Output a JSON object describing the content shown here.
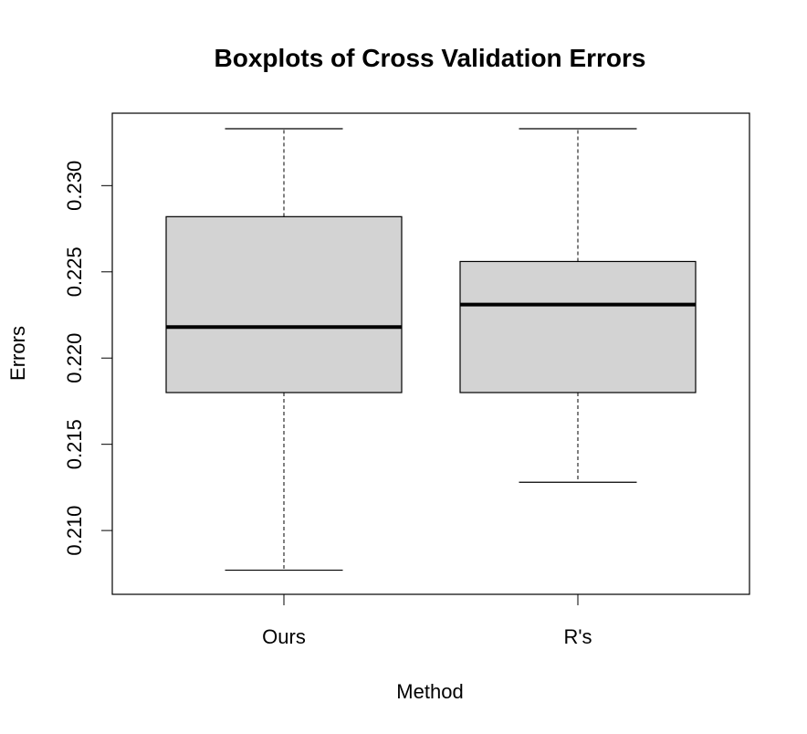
{
  "chart_data": {
    "type": "boxplot",
    "title": "Boxplots of Cross Validation Errors",
    "xlabel": "Method",
    "ylabel": "Errors",
    "ylim": [
      0.2063,
      0.2342
    ],
    "y_ticks": [
      0.21,
      0.215,
      0.22,
      0.225,
      0.23
    ],
    "y_tick_labels": [
      "0.210",
      "0.215",
      "0.220",
      "0.225",
      "0.230"
    ],
    "categories": [
      "Ours",
      "R's"
    ],
    "boxes": [
      {
        "label": "Ours",
        "whisker_low": 0.2077,
        "q1": 0.218,
        "median": 0.2218,
        "q3": 0.2282,
        "whisker_high": 0.2333
      },
      {
        "label": "R's",
        "whisker_low": 0.2128,
        "q1": 0.218,
        "median": 0.2231,
        "q3": 0.2256,
        "whisker_high": 0.2333
      }
    ],
    "box_fill": "#d3d3d3",
    "line_color": "#000000",
    "grid": false,
    "legend": false
  }
}
